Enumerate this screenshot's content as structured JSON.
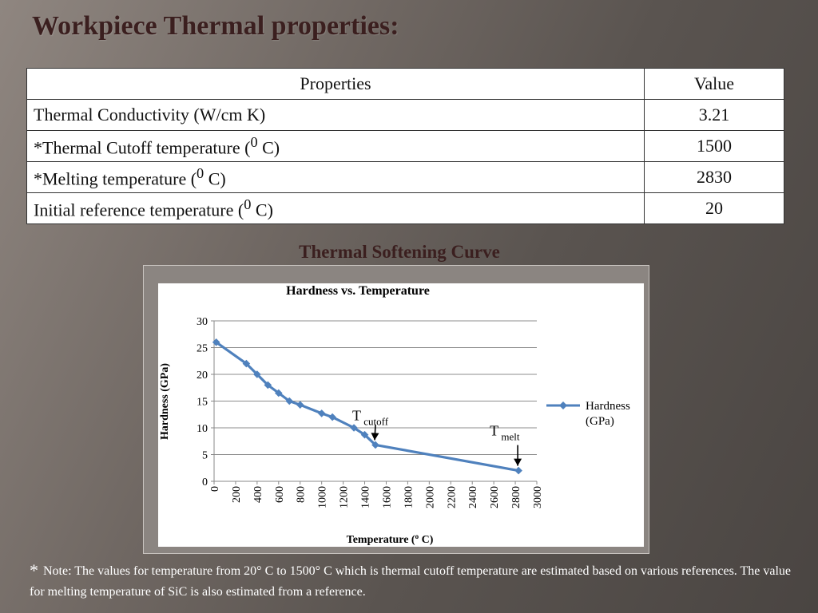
{
  "slide": {
    "title": "Workpiece Thermal properties:",
    "section_title": "Thermal Softening Curve"
  },
  "table": {
    "headers": [
      "Properties",
      "Value"
    ],
    "rows": [
      {
        "property": "Thermal Conductivity (W/cm K)",
        "value": "3.21"
      },
      {
        "property_pre": "*Thermal Cutoff temperature (",
        "property_sup": "0",
        "property_post": " C)",
        "value": "1500"
      },
      {
        "property_pre": "*Melting temperature (",
        "property_sup": "0",
        "property_post": " C)",
        "value": "2830"
      },
      {
        "property_pre": "Initial reference temperature (",
        "property_sup": "0",
        "property_post": " C)",
        "value": "20"
      }
    ]
  },
  "chart_data": {
    "type": "line",
    "title": "Hardness vs. Temperature",
    "xlabel_pre": "Temperature (",
    "xlabel_sup": "o",
    "xlabel_post": " C)",
    "ylabel": "Hardness (GPa)",
    "xlim": [
      0,
      3000
    ],
    "ylim": [
      0,
      30
    ],
    "x_ticks": [
      0,
      200,
      400,
      600,
      800,
      1000,
      1200,
      1400,
      1600,
      1800,
      2000,
      2200,
      2400,
      2600,
      2800,
      3000
    ],
    "y_ticks": [
      0,
      5,
      10,
      15,
      20,
      25,
      30
    ],
    "grid": "horizontal",
    "legend_placement": "right",
    "series": [
      {
        "name": "Hardness (GPa)",
        "legend_lines": [
          "Hardness",
          "(GPa)"
        ],
        "color": "#4f81bd",
        "x": [
          20,
          300,
          400,
          500,
          600,
          700,
          800,
          1000,
          1100,
          1300,
          1400,
          1500,
          2830
        ],
        "y": [
          26,
          22,
          20,
          18,
          16.5,
          15,
          14.3,
          12.7,
          12,
          10,
          8.7,
          6.8,
          2
        ]
      }
    ],
    "annotations": [
      {
        "main": "T",
        "sub": "cutoff",
        "target_x": 1500,
        "target_y": 6.8
      },
      {
        "main": "T",
        "sub": "melt",
        "target_x": 2830,
        "target_y": 2
      }
    ]
  },
  "note": {
    "star": "*",
    "text": "Note: The values for temperature from 20° C to 1500° C which is thermal cutoff temperature are estimated based on various references. The value for melting temperature of SiC is also estimated from a reference."
  }
}
